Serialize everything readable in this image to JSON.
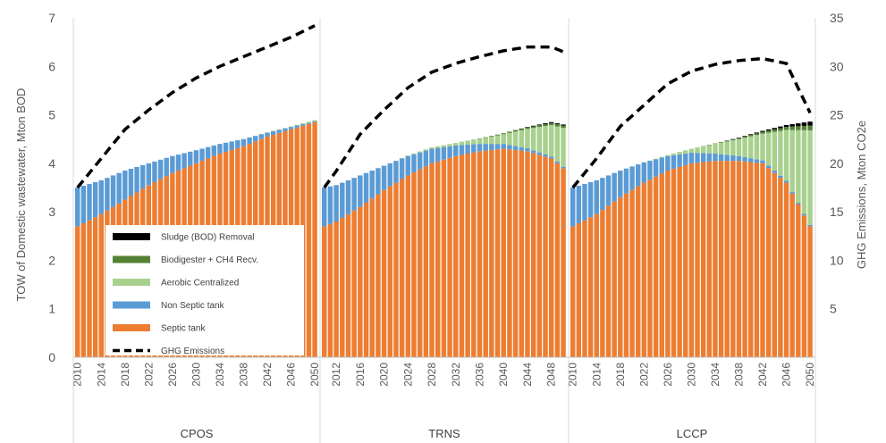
{
  "chart_data": {
    "type": "bar",
    "stacked": true,
    "secondary_series_type": "line",
    "ylabel": "TOW of Domestic wastewater, Mton BOD",
    "y2label": "GHG Emissions, Mton CO2e",
    "ylim": [
      0,
      7
    ],
    "y2lim": [
      0,
      35
    ],
    "yticks": [
      0,
      1,
      2,
      3,
      4,
      5,
      6,
      7
    ],
    "y2ticks": [
      "",
      "5",
      "10",
      "15",
      "20",
      "25",
      "30",
      "35"
    ],
    "legend_position": "lower-left inside",
    "grid": "vertical panel separators",
    "colors": {
      "septic": "#ED7D31",
      "non_septic": "#5B9BD5",
      "aerobic": "#A9D18E",
      "biodigester": "#548235",
      "sludge": "#000000",
      "ghg": "#000000"
    },
    "legend": [
      {
        "name": "Sludge (BOD) Removal",
        "key": "sludge"
      },
      {
        "name": "Biodigester + CH4 Recv.",
        "key": "biodigester"
      },
      {
        "name": "Aerobic Centralized",
        "key": "aerobic"
      },
      {
        "name": "Non Septic tank",
        "key": "non_septic"
      },
      {
        "name": "Septic tank",
        "key": "septic"
      },
      {
        "name": "GHG Emissions",
        "key": "ghg"
      }
    ],
    "panels": [
      {
        "name": "CPOS",
        "tick_labels": [
          "2010",
          "2014",
          "2018",
          "2022",
          "2026",
          "2030",
          "2034",
          "2038",
          "2042",
          "2046",
          "2050"
        ],
        "x": [
          2010,
          2014,
          2018,
          2022,
          2026,
          2030,
          2034,
          2038,
          2042,
          2046,
          2050
        ],
        "septic": [
          2.7,
          2.95,
          3.25,
          3.55,
          3.8,
          4.0,
          4.2,
          4.35,
          4.55,
          4.7,
          4.85
        ],
        "non_septic": [
          0.8,
          0.7,
          0.6,
          0.45,
          0.35,
          0.27,
          0.2,
          0.15,
          0.08,
          0.05,
          0.02
        ],
        "aerobic": [
          0,
          0,
          0,
          0,
          0,
          0,
          0,
          0,
          0.01,
          0.01,
          0.02
        ],
        "biodigester": [
          0,
          0,
          0,
          0,
          0,
          0,
          0,
          0,
          0,
          0,
          0
        ],
        "sludge": [
          0,
          0,
          0,
          0,
          0,
          0,
          0,
          0,
          0,
          0,
          0
        ],
        "ghg": [
          17.5,
          20.5,
          23.5,
          25.5,
          27.3,
          28.8,
          30.0,
          31.0,
          32.0,
          33.0,
          34.2
        ]
      },
      {
        "name": "TRNS",
        "tick_labels": [
          "2012",
          "2016",
          "2020",
          "2024",
          "2028",
          "2032",
          "2036",
          "2040",
          "2044",
          "2048"
        ],
        "x": [
          2010,
          2012,
          2016,
          2020,
          2024,
          2028,
          2032,
          2036,
          2040,
          2044,
          2048,
          2050
        ],
        "septic": [
          2.7,
          2.8,
          3.1,
          3.45,
          3.75,
          4.0,
          4.15,
          4.25,
          4.3,
          4.25,
          4.1,
          3.9
        ],
        "non_septic": [
          0.8,
          0.75,
          0.65,
          0.5,
          0.4,
          0.3,
          0.22,
          0.15,
          0.1,
          0.06,
          0.04,
          0.03
        ],
        "aerobic": [
          0,
          0,
          0,
          0,
          0.01,
          0.03,
          0.05,
          0.1,
          0.2,
          0.4,
          0.65,
          0.8
        ],
        "biodigester": [
          0,
          0,
          0,
          0,
          0,
          0,
          0,
          0.01,
          0.02,
          0.03,
          0.04,
          0.05
        ],
        "sludge": [
          0,
          0,
          0,
          0,
          0,
          0,
          0,
          0,
          0,
          0.01,
          0.02,
          0.02
        ],
        "ghg": [
          17.5,
          19.2,
          23.0,
          25.5,
          27.8,
          29.4,
          30.3,
          31.0,
          31.6,
          32.0,
          32.0,
          31.5
        ]
      },
      {
        "name": "LCCP",
        "tick_labels": [
          "2010",
          "2014",
          "2018",
          "2022",
          "2026",
          "2030",
          "2034",
          "2038",
          "2042",
          "2046",
          "2050"
        ],
        "x": [
          2010,
          2014,
          2018,
          2022,
          2026,
          2030,
          2034,
          2038,
          2042,
          2046,
          2050
        ],
        "septic": [
          2.7,
          2.95,
          3.3,
          3.6,
          3.85,
          4.0,
          4.05,
          4.05,
          4.0,
          3.6,
          2.7
        ],
        "non_septic": [
          0.8,
          0.7,
          0.55,
          0.42,
          0.3,
          0.22,
          0.15,
          0.1,
          0.06,
          0.04,
          0.03
        ],
        "aerobic": [
          0,
          0,
          0,
          0,
          0.02,
          0.08,
          0.2,
          0.35,
          0.55,
          1.05,
          1.95
        ],
        "biodigester": [
          0,
          0,
          0,
          0,
          0,
          0,
          0.01,
          0.02,
          0.04,
          0.06,
          0.1
        ],
        "sludge": [
          0,
          0,
          0,
          0,
          0,
          0,
          0,
          0.01,
          0.02,
          0.04,
          0.08
        ],
        "ghg": [
          17.5,
          20.5,
          23.8,
          26.0,
          28.2,
          29.5,
          30.2,
          30.6,
          30.8,
          30.3,
          25.2
        ]
      }
    ]
  }
}
